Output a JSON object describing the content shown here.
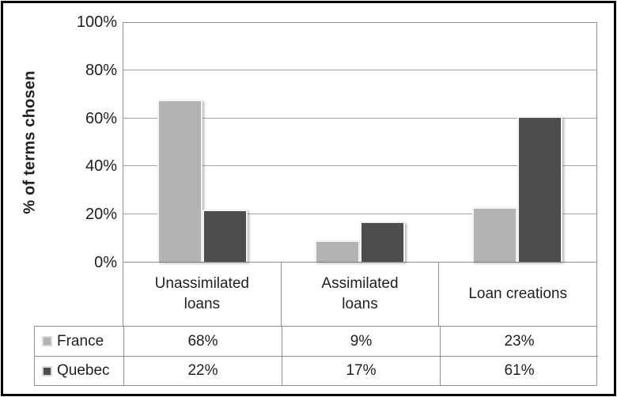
{
  "chart_data": {
    "type": "bar",
    "title": "",
    "ylabel": "% of terms chosen",
    "xlabel": "",
    "ylim": [
      0,
      100
    ],
    "grid": true,
    "legend_position": "table-left",
    "ytick_labels": [
      "100%",
      "80%",
      "60%",
      "40%",
      "20%",
      "0%"
    ],
    "categories": [
      "Unassimilated loans",
      "Assimilated loans",
      "Loan creations"
    ],
    "category_label_lines": [
      [
        "Unassimilated",
        "loans"
      ],
      [
        "Assimilated",
        "loans"
      ],
      [
        "Loan creations"
      ]
    ],
    "series": [
      {
        "name": "France",
        "color": "#b3b3b3",
        "values": [
          68,
          9,
          23
        ]
      },
      {
        "name": "Quebec",
        "color": "#4d4d4d",
        "values": [
          22,
          17,
          61
        ]
      }
    ],
    "value_suffix": "%",
    "table_values_display": [
      [
        "68%",
        "9%",
        "23%"
      ],
      [
        "22%",
        "17%",
        "61%"
      ]
    ]
  }
}
